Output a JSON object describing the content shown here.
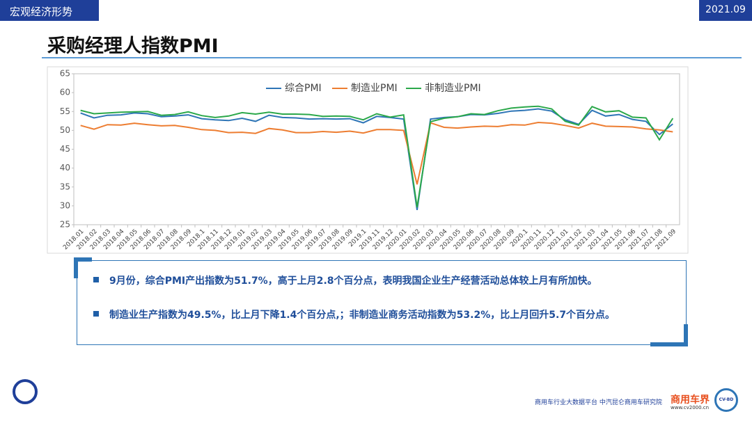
{
  "header": {
    "tag": "宏观经济形势",
    "date": "2021.09",
    "title": "采购经理人指数PMI"
  },
  "chart_data": {
    "type": "line",
    "categories": [
      "2018.01",
      "2018.02",
      "2018.03",
      "2018.04",
      "2018.05",
      "2018.06",
      "2018.07",
      "2018.08",
      "2018.09",
      "2018.1",
      "2018.11",
      "2018.12",
      "2019.01",
      "2019.02",
      "2019.03",
      "2019.04",
      "2019.05",
      "2019.06",
      "2019.07",
      "2019.08",
      "2019.09",
      "2019.1",
      "2019.11",
      "2019.12",
      "2020.01",
      "2020.02",
      "2020.03",
      "2020.04",
      "2020.05",
      "2020.06",
      "2020.07",
      "2020.08",
      "2020.09",
      "2020.1",
      "2020.11",
      "2020.12",
      "2021.01",
      "2021.02",
      "2021.03",
      "2021.04",
      "2021.05",
      "2021.06",
      "2021.07",
      "2021.08",
      "2021.09"
    ],
    "series": [
      {
        "name": "综合PMI",
        "color": "#2e75b6",
        "values": [
          54.6,
          53.3,
          54.0,
          54.1,
          54.6,
          54.4,
          53.6,
          53.8,
          54.1,
          53.1,
          52.8,
          52.6,
          53.2,
          52.4,
          54.0,
          53.4,
          53.3,
          53.0,
          53.1,
          53.0,
          53.1,
          52.0,
          53.7,
          53.4,
          53.0,
          28.9,
          53.0,
          53.4,
          53.6,
          54.2,
          54.1,
          54.5,
          55.1,
          55.3,
          55.7,
          55.1,
          52.8,
          51.6,
          55.3,
          53.8,
          54.2,
          52.9,
          52.4,
          48.9,
          51.7
        ]
      },
      {
        "name": "制造业PMI",
        "color": "#ed7d31",
        "values": [
          51.3,
          50.3,
          51.5,
          51.4,
          51.9,
          51.5,
          51.2,
          51.3,
          50.8,
          50.2,
          50.0,
          49.4,
          49.5,
          49.2,
          50.5,
          50.1,
          49.4,
          49.4,
          49.7,
          49.5,
          49.8,
          49.3,
          50.2,
          50.2,
          50.0,
          35.7,
          52.0,
          50.8,
          50.6,
          50.9,
          51.1,
          51.0,
          51.5,
          51.4,
          52.1,
          51.9,
          51.3,
          50.6,
          51.9,
          51.1,
          51.0,
          50.9,
          50.4,
          50.1,
          49.6
        ]
      },
      {
        "name": "非制造业PMI",
        "color": "#2ba84a",
        "values": [
          55.3,
          54.4,
          54.6,
          54.8,
          54.9,
          55.0,
          54.0,
          54.2,
          54.9,
          53.9,
          53.4,
          53.8,
          54.7,
          54.3,
          54.8,
          54.3,
          54.3,
          54.2,
          53.7,
          53.8,
          53.7,
          52.8,
          54.4,
          53.5,
          54.1,
          29.6,
          52.3,
          53.2,
          53.6,
          54.4,
          54.2,
          55.2,
          55.9,
          56.2,
          56.4,
          55.7,
          52.4,
          51.4,
          56.3,
          54.9,
          55.2,
          53.5,
          53.3,
          47.5,
          53.2
        ]
      }
    ],
    "ylim": [
      25,
      65
    ],
    "yticks": [
      25,
      30,
      35,
      40,
      45,
      50,
      55,
      60,
      65
    ],
    "grid": false,
    "legend": "top"
  },
  "notes": [
    "9月份，综合PMI产出指数为51.7%，高于上月2.8个百分点，表明我国企业生产经营活动总体较上月有所加快。",
    "制造业生产指数为49.5%，比上月下降1.4个百分点,；非制造业商务活动指数为53.2%，比上月回升5.7个百分点。"
  ],
  "footer": {
    "text": "商用车行业大数据平台  中汽昆仑商用车研究院",
    "brand": "商用车界",
    "url": "www.cv2000.cn",
    "badge": "CV-BD"
  }
}
